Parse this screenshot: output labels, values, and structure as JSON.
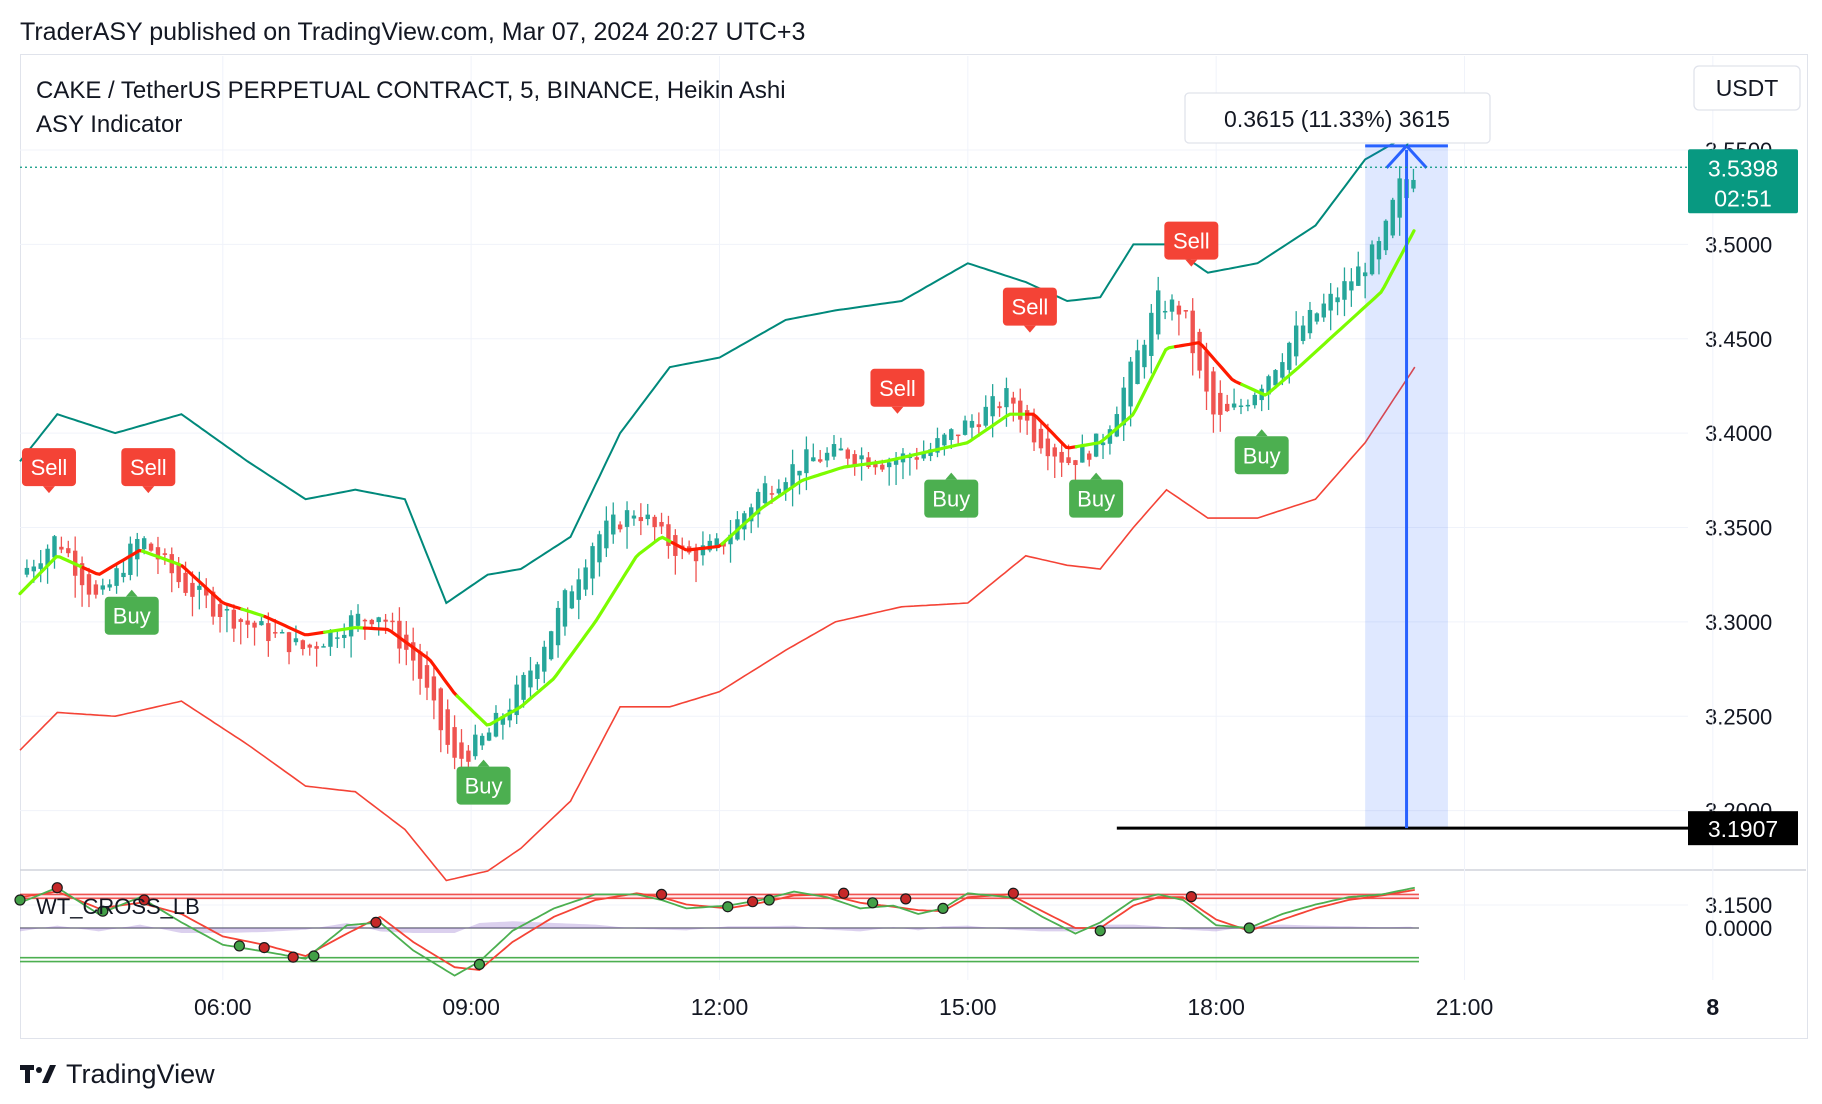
{
  "publish_line": "TraderASY published on TradingView.com, Mar 07, 2024 20:27 UTC+3",
  "legend": {
    "symbol_line": "CAKE / TetherUS PERPETUAL CONTRACT, 5, BINANCE, Heikin Ashi",
    "indicator_name": "ASY Indicator",
    "oscillator_name": "WT_CROSS_LB"
  },
  "currency_button": "USDT",
  "measure_label": "0.3615 (11.33%) 3615",
  "last_price": {
    "price": "3.5398",
    "countdown": "02:51",
    "color": "#089981"
  },
  "stop_price_label": "3.1907",
  "footer_brand": "TradingView",
  "colors": {
    "bull": "#26a69a",
    "bear": "#ef5350",
    "upper_band": "#00897b",
    "lower_band": "#f44336",
    "trend_up": "#7cfc00",
    "trend_down": "#ff1a00",
    "buy_badge": "#4caf50",
    "sell_badge": "#f44336",
    "measure": "#2962ff"
  },
  "chart_data": {
    "type": "candlestick",
    "title": "CAKE / TetherUS PERPETUAL CONTRACT, 5, BINANCE, Heikin Ashi",
    "xlabel": "",
    "ylabel": "",
    "x_ticks": [
      "06:00",
      "09:00",
      "12:00",
      "15:00",
      "18:00",
      "21:00",
      "8"
    ],
    "y_ticks": [
      "3.5500",
      "3.5000",
      "3.4500",
      "3.4000",
      "3.3500",
      "3.3000",
      "3.2500",
      "3.2000",
      "3.1500"
    ],
    "ylim": [
      3.12,
      3.575
    ],
    "xlim_hours": [
      3.55,
      23.7
    ],
    "grid": true,
    "price_series": {
      "name": "CAKE/USDT Heikin Ashi close",
      "x_hours": [
        3.55,
        4.0,
        4.5,
        5.0,
        5.5,
        6.0,
        6.5,
        7.0,
        7.5,
        7.9,
        8.3,
        8.8,
        9.2,
        9.6,
        10.0,
        10.5,
        11.0,
        11.3,
        11.6,
        12.0,
        12.5,
        13.0,
        13.5,
        14.0,
        14.5,
        15.0,
        15.5,
        15.8,
        16.2,
        16.6,
        16.9,
        17.3,
        17.6,
        17.8,
        18.0,
        18.3,
        18.6,
        19.0,
        19.5,
        20.0,
        20.2,
        20.4
      ],
      "values": [
        3.325,
        3.345,
        3.31,
        3.345,
        3.32,
        3.305,
        3.295,
        3.285,
        3.3,
        3.305,
        3.28,
        3.225,
        3.24,
        3.265,
        3.3,
        3.345,
        3.36,
        3.345,
        3.335,
        3.34,
        3.37,
        3.385,
        3.39,
        3.385,
        3.39,
        3.405,
        3.42,
        3.4,
        3.385,
        3.395,
        3.425,
        3.47,
        3.465,
        3.43,
        3.405,
        3.415,
        3.43,
        3.455,
        3.475,
        3.5,
        3.53,
        3.5398
      ]
    },
    "upper_band": {
      "x_hours": [
        3.55,
        4.0,
        4.7,
        5.5,
        6.3,
        7.0,
        7.6,
        8.2,
        8.7,
        9.2,
        9.6,
        10.2,
        10.8,
        11.4,
        12.0,
        12.8,
        13.4,
        14.2,
        15.0,
        15.7,
        16.2,
        16.6,
        17.0,
        17.4,
        17.9,
        18.5,
        19.2,
        19.8,
        20.4
      ],
      "values": [
        3.385,
        3.41,
        3.4,
        3.41,
        3.385,
        3.365,
        3.37,
        3.365,
        3.31,
        3.325,
        3.328,
        3.345,
        3.4,
        3.435,
        3.44,
        3.46,
        3.465,
        3.47,
        3.49,
        3.48,
        3.47,
        3.472,
        3.5,
        3.5,
        3.485,
        3.49,
        3.51,
        3.545,
        3.56
      ]
    },
    "lower_band": {
      "x_hours": [
        3.55,
        4.0,
        4.7,
        5.5,
        6.3,
        7.0,
        7.6,
        8.2,
        8.7,
        9.2,
        9.6,
        10.2,
        10.8,
        11.4,
        12.0,
        12.8,
        13.4,
        14.2,
        15.0,
        15.7,
        16.2,
        16.6,
        17.0,
        17.4,
        17.9,
        18.5,
        19.2,
        19.8,
        20.4
      ],
      "values": [
        3.232,
        3.252,
        3.25,
        3.258,
        3.235,
        3.213,
        3.21,
        3.19,
        3.163,
        3.168,
        3.18,
        3.205,
        3.255,
        3.255,
        3.263,
        3.285,
        3.3,
        3.308,
        3.31,
        3.335,
        3.33,
        3.328,
        3.35,
        3.37,
        3.355,
        3.355,
        3.365,
        3.395,
        3.435
      ]
    },
    "trend_line": {
      "x_hours": [
        3.55,
        4.0,
        4.5,
        5.0,
        5.5,
        6.0,
        6.5,
        7.0,
        7.6,
        8.0,
        8.5,
        8.8,
        9.2,
        9.6,
        10.0,
        10.5,
        11.0,
        11.3,
        11.6,
        12.0,
        12.5,
        13.0,
        13.5,
        14.0,
        14.5,
        15.0,
        15.5,
        15.8,
        16.2,
        16.6,
        17.0,
        17.4,
        17.8,
        18.2,
        18.6,
        19.0,
        19.5,
        20.0,
        20.4
      ],
      "values": [
        3.315,
        3.335,
        3.325,
        3.338,
        3.33,
        3.31,
        3.303,
        3.293,
        3.297,
        3.296,
        3.28,
        3.262,
        3.245,
        3.255,
        3.27,
        3.3,
        3.335,
        3.345,
        3.338,
        3.34,
        3.36,
        3.375,
        3.382,
        3.385,
        3.39,
        3.395,
        3.41,
        3.41,
        3.392,
        3.395,
        3.41,
        3.445,
        3.448,
        3.428,
        3.42,
        3.435,
        3.455,
        3.475,
        3.508
      ],
      "down_segments_hours": [
        [
          4.3,
          5.0
        ],
        [
          5.5,
          6.2
        ],
        [
          6.5,
          7.2
        ],
        [
          7.7,
          8.8
        ],
        [
          11.4,
          12.0
        ],
        [
          15.7,
          16.3
        ],
        [
          17.5,
          18.3
        ]
      ]
    },
    "signals": [
      {
        "type": "Sell",
        "x_hour": 3.9,
        "price": 3.355
      },
      {
        "type": "Buy",
        "x_hour": 4.9,
        "price": 3.325
      },
      {
        "type": "Sell",
        "x_hour": 5.1,
        "price": 3.355
      },
      {
        "type": "Buy",
        "x_hour": 9.15,
        "price": 3.235
      },
      {
        "type": "Sell",
        "x_hour": 14.15,
        "price": 3.397
      },
      {
        "type": "Buy",
        "x_hour": 14.8,
        "price": 3.387
      },
      {
        "type": "Sell",
        "x_hour": 15.75,
        "price": 3.44
      },
      {
        "type": "Buy",
        "x_hour": 16.55,
        "price": 3.387
      },
      {
        "type": "Sell",
        "x_hour": 17.7,
        "price": 3.475
      },
      {
        "type": "Buy",
        "x_hour": 18.55,
        "price": 3.41
      }
    ],
    "measure_tool": {
      "from_price": 3.1907,
      "to_price": 3.5522,
      "change": 0.3615,
      "percent": 11.33,
      "x_from_hour": 19.8,
      "x_to_hour": 20.8
    },
    "stop_line_price": 3.1907,
    "last_price": 3.5398,
    "oscillator": {
      "name": "WT_CROSS_LB",
      "y_ticks": [
        "0.0000"
      ],
      "ylim": [
        -1.0,
        1.0
      ],
      "upper_levels": [
        0.6,
        0.53
      ],
      "lower_levels": [
        -0.6,
        -0.53
      ],
      "wt1": {
        "x_hours": [
          3.55,
          4.0,
          4.5,
          5.0,
          5.5,
          6.0,
          6.5,
          7.0,
          7.5,
          7.9,
          8.3,
          8.8,
          9.1,
          9.5,
          10.0,
          10.5,
          11.0,
          11.3,
          11.6,
          12.1,
          12.5,
          12.9,
          13.3,
          13.7,
          14.1,
          14.4,
          14.7,
          15.0,
          15.5,
          15.9,
          16.3,
          16.6,
          17.0,
          17.3,
          17.6,
          18.0,
          18.4,
          18.8,
          19.2,
          19.6,
          20.0,
          20.4
        ],
        "values": [
          0.45,
          0.72,
          0.25,
          0.55,
          0.1,
          -0.3,
          -0.42,
          -0.55,
          0.05,
          0.1,
          -0.4,
          -0.85,
          -0.6,
          -0.05,
          0.35,
          0.6,
          0.6,
          0.5,
          0.35,
          0.4,
          0.5,
          0.65,
          0.55,
          0.35,
          0.4,
          0.25,
          0.35,
          0.62,
          0.55,
          0.2,
          -0.1,
          0.1,
          0.5,
          0.6,
          0.5,
          0.05,
          0.0,
          0.25,
          0.42,
          0.55,
          0.6,
          0.72
        ]
      },
      "wt2": {
        "x_hours": [
          3.55,
          4.0,
          4.5,
          5.0,
          5.5,
          6.0,
          6.5,
          7.0,
          7.5,
          7.9,
          8.3,
          8.8,
          9.1,
          9.5,
          10.0,
          10.5,
          11.0,
          11.3,
          11.6,
          12.1,
          12.5,
          12.9,
          13.3,
          13.7,
          14.1,
          14.4,
          14.7,
          15.0,
          15.5,
          15.9,
          16.3,
          16.6,
          17.0,
          17.3,
          17.6,
          18.0,
          18.4,
          18.8,
          19.2,
          19.6,
          20.0,
          20.4
        ],
        "values": [
          0.55,
          0.65,
          0.35,
          0.45,
          0.25,
          -0.15,
          -0.3,
          -0.5,
          -0.1,
          0.2,
          -0.25,
          -0.7,
          -0.75,
          -0.25,
          0.2,
          0.5,
          0.62,
          0.55,
          0.42,
          0.35,
          0.45,
          0.58,
          0.6,
          0.45,
          0.38,
          0.32,
          0.3,
          0.55,
          0.6,
          0.3,
          0.0,
          0.0,
          0.4,
          0.55,
          0.55,
          0.15,
          -0.05,
          0.15,
          0.35,
          0.5,
          0.58,
          0.68
        ]
      },
      "cross_dots": [
        {
          "x_hour": 3.55,
          "value": 0.5,
          "color": "green"
        },
        {
          "x_hour": 4.0,
          "value": 0.72,
          "color": "red"
        },
        {
          "x_hour": 4.55,
          "value": 0.3,
          "color": "green"
        },
        {
          "x_hour": 5.05,
          "value": 0.5,
          "color": "red"
        },
        {
          "x_hour": 6.2,
          "value": -0.32,
          "color": "green"
        },
        {
          "x_hour": 6.5,
          "value": -0.35,
          "color": "red"
        },
        {
          "x_hour": 6.85,
          "value": -0.52,
          "color": "red"
        },
        {
          "x_hour": 7.1,
          "value": -0.5,
          "color": "green"
        },
        {
          "x_hour": 7.85,
          "value": 0.1,
          "color": "red"
        },
        {
          "x_hour": 9.1,
          "value": -0.65,
          "color": "green"
        },
        {
          "x_hour": 11.3,
          "value": 0.6,
          "color": "red"
        },
        {
          "x_hour": 12.1,
          "value": 0.38,
          "color": "green"
        },
        {
          "x_hour": 12.4,
          "value": 0.47,
          "color": "red"
        },
        {
          "x_hour": 12.6,
          "value": 0.5,
          "color": "green"
        },
        {
          "x_hour": 13.5,
          "value": 0.62,
          "color": "red"
        },
        {
          "x_hour": 13.85,
          "value": 0.45,
          "color": "green"
        },
        {
          "x_hour": 14.25,
          "value": 0.52,
          "color": "red"
        },
        {
          "x_hour": 14.7,
          "value": 0.35,
          "color": "green"
        },
        {
          "x_hour": 15.55,
          "value": 0.62,
          "color": "red"
        },
        {
          "x_hour": 16.6,
          "value": -0.05,
          "color": "green"
        },
        {
          "x_hour": 17.7,
          "value": 0.56,
          "color": "red"
        },
        {
          "x_hour": 18.4,
          "value": 0.0,
          "color": "green"
        }
      ]
    }
  }
}
